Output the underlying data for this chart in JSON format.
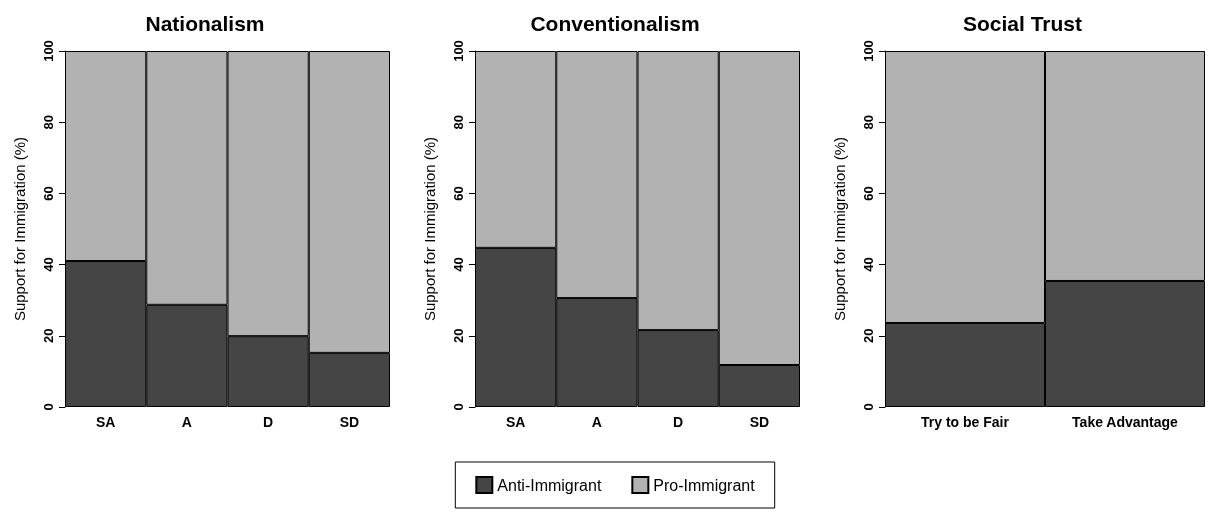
{
  "chart_data": [
    {
      "type": "bar",
      "title": "Nationalism",
      "ylabel": "Support for Immigration (%)",
      "categories": [
        "SA",
        "A",
        "D",
        "SD"
      ],
      "stacked": true,
      "ylim": [
        0,
        100
      ],
      "yticks": [
        0,
        20,
        40,
        60,
        80,
        100
      ],
      "grid": false,
      "series": [
        {
          "color": "#454545",
          "values": [
            41,
            28.7,
            19.9,
            15.2
          ]
        },
        {
          "color": "#b2b2b2",
          "values": [
            59,
            71.3,
            80.1,
            84.8
          ]
        }
      ]
    },
    {
      "type": "bar",
      "title": "Conventionalism",
      "ylabel": "Support for Immigration (%)",
      "categories": [
        "SA",
        "A",
        "D",
        "SD"
      ],
      "stacked": true,
      "ylim": [
        0,
        100
      ],
      "yticks": [
        0,
        20,
        40,
        60,
        80,
        100
      ],
      "grid": false,
      "legend": "bottom",
      "series": [
        {
          "name": "Anti-Immigrant",
          "color": "#454545",
          "values": [
            44.7,
            30.6,
            21.6,
            11.8
          ]
        },
        {
          "name": "Pro-Immigrant",
          "color": "#b2b2b2",
          "values": [
            55.3,
            69.4,
            78.4,
            88.2
          ]
        }
      ]
    },
    {
      "type": "bar",
      "title": "Social Trust",
      "ylabel": "Support for Immigration (%)",
      "categories": [
        "Try to be Fair",
        "Take Advantage"
      ],
      "stacked": true,
      "ylim": [
        0,
        100
      ],
      "yticks": [
        0,
        20,
        40,
        60,
        80,
        100
      ],
      "grid": false,
      "series": [
        {
          "color": "#454545",
          "values": [
            23.6,
            35.4
          ]
        },
        {
          "color": "#b2b2b2",
          "values": [
            76.4,
            64.6
          ]
        }
      ]
    }
  ]
}
